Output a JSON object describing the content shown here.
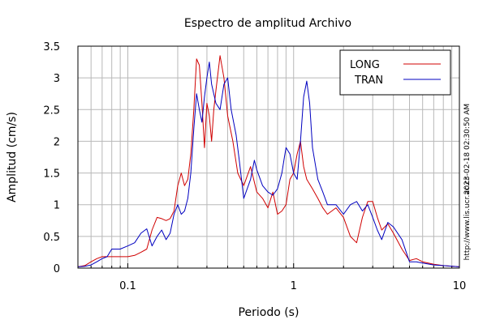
{
  "chart_data": {
    "type": "line",
    "title": "Espectro de amplitud Archivo",
    "xlabel": "Periodo (s)",
    "ylabel": "Amplitud (cm/s)",
    "x_scale": "log",
    "xlim": [
      0.05,
      10
    ],
    "ylim": [
      0,
      3.5
    ],
    "x_tick_labels": [
      "0.1",
      "1",
      "10"
    ],
    "x_tick_values": [
      0.1,
      1,
      10
    ],
    "y_tick_labels": [
      "0",
      "0.5",
      "1",
      "1.5",
      "2",
      "2.5",
      "3",
      "3.5"
    ],
    "y_tick_values": [
      0,
      0.5,
      1,
      1.5,
      2,
      2.5,
      3,
      3.5
    ],
    "grid": true,
    "legend_position": "top-right",
    "series": [
      {
        "name": "LONG",
        "color": "#d00000",
        "points": [
          [
            0.05,
            0.02
          ],
          [
            0.055,
            0.04
          ],
          [
            0.06,
            0.1
          ],
          [
            0.065,
            0.15
          ],
          [
            0.07,
            0.18
          ],
          [
            0.08,
            0.18
          ],
          [
            0.09,
            0.18
          ],
          [
            0.1,
            0.18
          ],
          [
            0.11,
            0.2
          ],
          [
            0.12,
            0.25
          ],
          [
            0.13,
            0.3
          ],
          [
            0.14,
            0.6
          ],
          [
            0.15,
            0.8
          ],
          [
            0.16,
            0.78
          ],
          [
            0.17,
            0.75
          ],
          [
            0.18,
            0.78
          ],
          [
            0.19,
            0.9
          ],
          [
            0.2,
            1.3
          ],
          [
            0.21,
            1.5
          ],
          [
            0.22,
            1.3
          ],
          [
            0.23,
            1.4
          ],
          [
            0.24,
            1.8
          ],
          [
            0.25,
            2.5
          ],
          [
            0.26,
            3.3
          ],
          [
            0.27,
            3.2
          ],
          [
            0.28,
            2.6
          ],
          [
            0.29,
            1.9
          ],
          [
            0.3,
            2.6
          ],
          [
            0.31,
            2.4
          ],
          [
            0.32,
            2.0
          ],
          [
            0.33,
            2.5
          ],
          [
            0.34,
            2.8
          ],
          [
            0.36,
            3.35
          ],
          [
            0.38,
            3.0
          ],
          [
            0.4,
            2.4
          ],
          [
            0.43,
            2.0
          ],
          [
            0.46,
            1.5
          ],
          [
            0.5,
            1.3
          ],
          [
            0.55,
            1.6
          ],
          [
            0.6,
            1.2
          ],
          [
            0.65,
            1.1
          ],
          [
            0.7,
            0.95
          ],
          [
            0.75,
            1.2
          ],
          [
            0.8,
            0.85
          ],
          [
            0.85,
            0.9
          ],
          [
            0.9,
            1.0
          ],
          [
            0.95,
            1.4
          ],
          [
            1.0,
            1.5
          ],
          [
            1.05,
            1.8
          ],
          [
            1.1,
            2.0
          ],
          [
            1.15,
            1.6
          ],
          [
            1.2,
            1.4
          ],
          [
            1.3,
            1.25
          ],
          [
            1.4,
            1.1
          ],
          [
            1.5,
            0.95
          ],
          [
            1.6,
            0.85
          ],
          [
            1.8,
            0.95
          ],
          [
            2.0,
            0.8
          ],
          [
            2.2,
            0.5
          ],
          [
            2.4,
            0.4
          ],
          [
            2.6,
            0.8
          ],
          [
            2.8,
            1.05
          ],
          [
            3.0,
            1.05
          ],
          [
            3.2,
            0.8
          ],
          [
            3.4,
            0.6
          ],
          [
            3.7,
            0.7
          ],
          [
            4.0,
            0.55
          ],
          [
            4.5,
            0.3
          ],
          [
            5.0,
            0.12
          ],
          [
            5.5,
            0.15
          ],
          [
            6.0,
            0.1
          ],
          [
            7.0,
            0.06
          ],
          [
            8.0,
            0.04
          ],
          [
            10.0,
            0.02
          ]
        ]
      },
      {
        "name": "TRAN",
        "color": "#0000c0",
        "points": [
          [
            0.05,
            0.02
          ],
          [
            0.055,
            0.03
          ],
          [
            0.06,
            0.05
          ],
          [
            0.065,
            0.1
          ],
          [
            0.07,
            0.15
          ],
          [
            0.075,
            0.18
          ],
          [
            0.08,
            0.3
          ],
          [
            0.09,
            0.3
          ],
          [
            0.1,
            0.35
          ],
          [
            0.11,
            0.4
          ],
          [
            0.12,
            0.55
          ],
          [
            0.13,
            0.62
          ],
          [
            0.14,
            0.35
          ],
          [
            0.15,
            0.5
          ],
          [
            0.16,
            0.6
          ],
          [
            0.17,
            0.45
          ],
          [
            0.18,
            0.55
          ],
          [
            0.19,
            0.85
          ],
          [
            0.2,
            1.0
          ],
          [
            0.21,
            0.85
          ],
          [
            0.22,
            0.9
          ],
          [
            0.23,
            1.1
          ],
          [
            0.24,
            1.5
          ],
          [
            0.25,
            2.2
          ],
          [
            0.26,
            2.75
          ],
          [
            0.27,
            2.5
          ],
          [
            0.28,
            2.3
          ],
          [
            0.29,
            2.7
          ],
          [
            0.3,
            3.0
          ],
          [
            0.31,
            3.25
          ],
          [
            0.32,
            2.9
          ],
          [
            0.34,
            2.6
          ],
          [
            0.36,
            2.5
          ],
          [
            0.38,
            2.9
          ],
          [
            0.4,
            3.0
          ],
          [
            0.42,
            2.5
          ],
          [
            0.45,
            2.1
          ],
          [
            0.47,
            1.7
          ],
          [
            0.5,
            1.1
          ],
          [
            0.55,
            1.4
          ],
          [
            0.58,
            1.7
          ],
          [
            0.6,
            1.55
          ],
          [
            0.65,
            1.3
          ],
          [
            0.7,
            1.2
          ],
          [
            0.75,
            1.15
          ],
          [
            0.8,
            1.25
          ],
          [
            0.85,
            1.5
          ],
          [
            0.88,
            1.75
          ],
          [
            0.9,
            1.9
          ],
          [
            0.95,
            1.8
          ],
          [
            1.0,
            1.5
          ],
          [
            1.05,
            1.4
          ],
          [
            1.1,
            2.0
          ],
          [
            1.15,
            2.7
          ],
          [
            1.2,
            2.95
          ],
          [
            1.25,
            2.6
          ],
          [
            1.3,
            1.9
          ],
          [
            1.4,
            1.4
          ],
          [
            1.5,
            1.2
          ],
          [
            1.6,
            1.0
          ],
          [
            1.8,
            1.0
          ],
          [
            2.0,
            0.85
          ],
          [
            2.2,
            1.0
          ],
          [
            2.4,
            1.05
          ],
          [
            2.6,
            0.9
          ],
          [
            2.8,
            1.0
          ],
          [
            3.0,
            0.8
          ],
          [
            3.2,
            0.6
          ],
          [
            3.4,
            0.45
          ],
          [
            3.7,
            0.72
          ],
          [
            4.0,
            0.65
          ],
          [
            4.5,
            0.45
          ],
          [
            5.0,
            0.1
          ],
          [
            5.5,
            0.1
          ],
          [
            6.0,
            0.08
          ],
          [
            7.0,
            0.05
          ],
          [
            8.0,
            0.04
          ],
          [
            10.0,
            0.02
          ]
        ]
      }
    ]
  },
  "side_labels": {
    "timestamp": "2023-02-18 02:30:50 AM",
    "url": "http://www.lis.ucr.ac.cr"
  },
  "colors": {
    "grid": "#b8b8b8",
    "axis": "#000000"
  }
}
